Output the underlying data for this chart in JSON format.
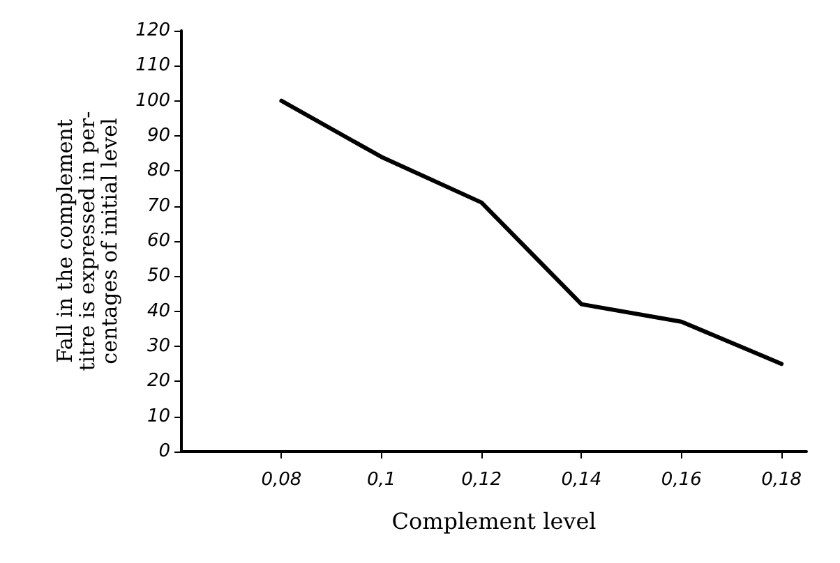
{
  "chart_data": {
    "type": "line",
    "xlabel": "Complement level",
    "ylabel": "Fall in the complement\ntitre is expressed in per-\ncentages of initial level",
    "x": [
      0.08,
      0.1,
      0.12,
      0.14,
      0.16,
      0.18
    ],
    "series": [
      {
        "color": "#000000",
        "values": [
          100,
          84,
          71,
          42,
          37,
          25
        ]
      }
    ],
    "xlim": [
      0.06,
      0.185
    ],
    "xticks": [
      {
        "value": 0.08,
        "label": "0,08"
      },
      {
        "value": 0.1,
        "label": "0,1"
      },
      {
        "value": 0.12,
        "label": "0,12"
      },
      {
        "value": 0.14,
        "label": "0,14"
      },
      {
        "value": 0.16,
        "label": "0,16"
      },
      {
        "value": 0.18,
        "label": "0,18"
      }
    ],
    "ylim": [
      0,
      120
    ],
    "yticks": [
      0,
      10,
      20,
      30,
      40,
      50,
      60,
      70,
      80,
      90,
      100,
      110,
      120
    ],
    "grid": false,
    "marker": "none",
    "line_style": "solid"
  }
}
